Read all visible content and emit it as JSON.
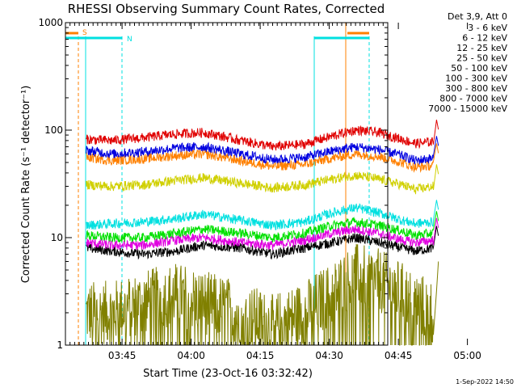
{
  "chart_data": {
    "type": "line",
    "title": "RHESSI Observing Summary Count Rates, Corrected",
    "xlabel": "Start Time (23-Oct-16 03:32:42)",
    "ylabel": "Corrected Count Rate (s⁻¹ detector⁻¹)",
    "yscale": "log",
    "ylim": [
      1,
      1000
    ],
    "y_ticks": [
      {
        "value": 1,
        "label": "1"
      },
      {
        "value": 10,
        "label": "10"
      },
      {
        "value": 100,
        "label": "100"
      },
      {
        "value": 1000,
        "label": "1000"
      }
    ],
    "xlim_minutes": [
      0,
      70
    ],
    "x_ticks": [
      {
        "minute": 12.3,
        "label": "03:45"
      },
      {
        "minute": 27.3,
        "label": "04:00"
      },
      {
        "minute": 42.3,
        "label": "04:15"
      },
      {
        "minute": 57.3,
        "label": "04:30"
      },
      {
        "minute": 72.3,
        "label": "04:45"
      },
      {
        "minute": 87.3,
        "label": "05:00"
      }
    ],
    "grid": false,
    "legend_title": "Det 3,9, Att 0",
    "legend_position": "right",
    "series": [
      {
        "name": "3 - 6 keV",
        "color": "#000000",
        "x": [
          4.5,
          10,
          17,
          24,
          30,
          38,
          45,
          52,
          58,
          63,
          68,
          73,
          76,
          80
        ],
        "y": [
          8,
          7.5,
          7,
          7.5,
          8.5,
          8,
          7,
          8,
          9,
          10,
          9,
          8,
          7.5,
          8
        ]
      },
      {
        "name": "6 - 12 keV",
        "color": "#e000e0",
        "x": [
          4.5,
          10,
          17,
          24,
          30,
          38,
          45,
          52,
          58,
          63,
          68,
          73,
          76,
          80
        ],
        "y": [
          9,
          8.5,
          8.5,
          9.5,
          10,
          9,
          8.5,
          9.5,
          11,
          12,
          11,
          9.5,
          9,
          9.5
        ]
      },
      {
        "name": "12 - 25 keV",
        "color": "#00e000",
        "x": [
          4.5,
          10,
          17,
          24,
          30,
          38,
          45,
          52,
          58,
          63,
          68,
          73,
          76,
          80
        ],
        "y": [
          10.5,
          10,
          10,
          11,
          12,
          11,
          10,
          11,
          13,
          14,
          13,
          11.5,
          10.5,
          11
        ]
      },
      {
        "name": "25 - 50 keV",
        "color": "#00e0e0",
        "x": [
          4.5,
          10,
          17,
          24,
          30,
          38,
          45,
          52,
          58,
          63,
          68,
          73,
          76,
          80
        ],
        "y": [
          13,
          13.5,
          14,
          15,
          16.5,
          14.5,
          13,
          14,
          17,
          19,
          17,
          14.5,
          13.5,
          14
        ]
      },
      {
        "name": "50 - 100 keV",
        "color": "#d0d000",
        "x": [
          4.5,
          10,
          17,
          24,
          30,
          38,
          45,
          52,
          58,
          63,
          68,
          73,
          76,
          80
        ],
        "y": [
          31,
          30,
          31,
          34,
          36,
          32,
          29,
          31,
          35,
          38,
          35,
          31,
          28,
          30
        ]
      },
      {
        "name": "100 - 300 keV",
        "color": "#e00000",
        "x": [
          4.5,
          10,
          17,
          24,
          30,
          38,
          45,
          52,
          58,
          63,
          68,
          73,
          76,
          80
        ],
        "y": [
          82,
          80,
          85,
          92,
          95,
          80,
          70,
          74,
          88,
          100,
          95,
          82,
          75,
          78
        ]
      },
      {
        "name": "300 - 800 keV",
        "color": "#0000e0",
        "x": [
          4.5,
          10,
          17,
          24,
          30,
          38,
          45,
          52,
          58,
          63,
          68,
          73,
          76,
          80
        ],
        "y": [
          65,
          60,
          63,
          68,
          70,
          60,
          53,
          56,
          64,
          70,
          66,
          58,
          52,
          55
        ]
      },
      {
        "name": "800 - 7000 keV",
        "color": "#ff8000",
        "x": [
          4.5,
          10,
          17,
          24,
          30,
          38,
          45,
          52,
          58,
          63,
          68,
          73,
          76,
          80
        ],
        "y": [
          56,
          52,
          54,
          58,
          60,
          52,
          46,
          48,
          55,
          60,
          57,
          50,
          45,
          47
        ]
      },
      {
        "name": "7000 - 15000 keV",
        "color": "#808000",
        "x": [
          4.5,
          10,
          17,
          24,
          30,
          38,
          45,
          52,
          58,
          63,
          68,
          73,
          76,
          80
        ],
        "y": [
          2,
          2,
          2.5,
          3,
          2.5,
          2,
          1.5,
          2,
          3,
          4.5,
          4,
          3,
          2.5,
          2
        ]
      }
    ],
    "annotations": [
      {
        "label": "S",
        "color": "#ff8000"
      },
      {
        "label": "N",
        "color": "#00e0e0"
      }
    ],
    "footer": "1-Sep-2022 14:50"
  }
}
